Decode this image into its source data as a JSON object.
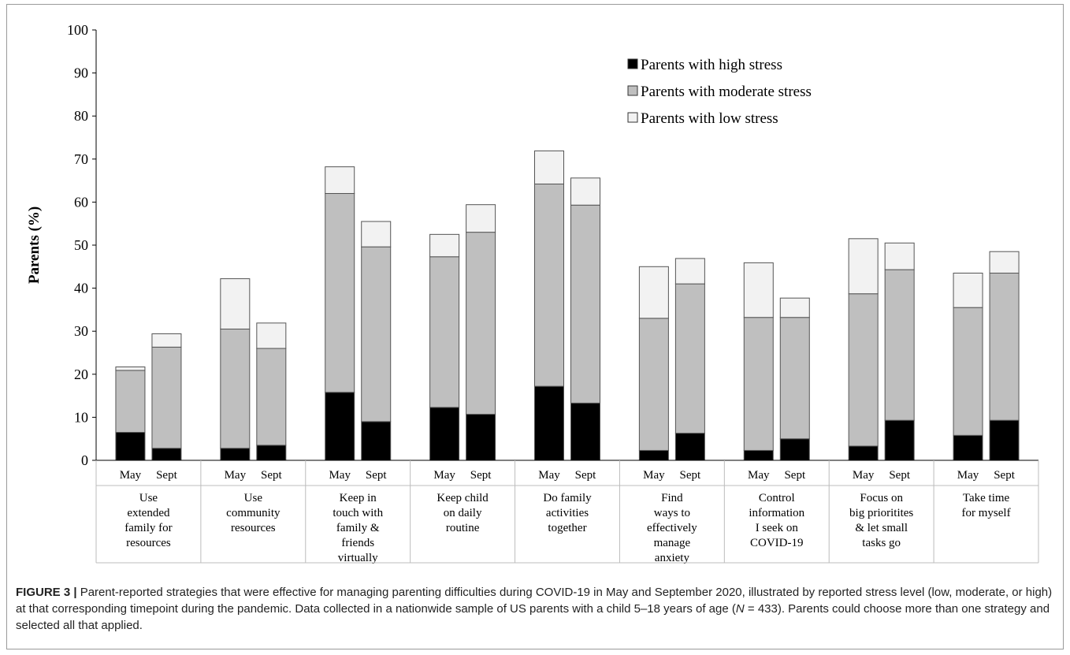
{
  "chart_data": {
    "type": "bar",
    "stacked": true,
    "title": "",
    "xlabel": "",
    "ylabel": "Parents (%)",
    "ylim": [
      0,
      100
    ],
    "yticks": [
      "0",
      "10",
      "20",
      "30",
      "40",
      "50",
      "60",
      "70",
      "80",
      "90",
      "100"
    ],
    "grid": false,
    "legend_position": "top-right",
    "groups": [
      {
        "label_lines": [
          "Use",
          "extended",
          "family for",
          "resources"
        ]
      },
      {
        "label_lines": [
          "Use",
          "community",
          "resources"
        ]
      },
      {
        "label_lines": [
          "Keep in",
          "touch with",
          "family &",
          "friends",
          "virtually"
        ]
      },
      {
        "label_lines": [
          "Keep child",
          "on daily",
          "routine"
        ]
      },
      {
        "label_lines": [
          "Do family",
          "activities",
          "together"
        ]
      },
      {
        "label_lines": [
          "Find",
          "ways to",
          "effectively",
          "manage",
          "anxiety"
        ]
      },
      {
        "label_lines": [
          "Control",
          "information",
          "I seek on",
          "COVID-19"
        ]
      },
      {
        "label_lines": [
          "Focus on",
          "big prioritites",
          "& let small",
          "tasks go"
        ]
      },
      {
        "label_lines": [
          "Take time",
          "for myself"
        ]
      }
    ],
    "timepoints": [
      "May",
      "Sept"
    ],
    "series": [
      {
        "name": "Parents with high stress",
        "color": "#000000",
        "values": [
          6.5,
          2.8,
          2.8,
          3.5,
          15.8,
          9.0,
          12.3,
          10.7,
          17.2,
          13.3,
          2.3,
          6.3,
          2.3,
          5.0,
          3.3,
          9.3,
          5.8,
          9.3
        ]
      },
      {
        "name": "Parents with moderate stress",
        "color": "#bfbfbf",
        "values": [
          14.4,
          23.5,
          27.7,
          22.5,
          46.2,
          40.6,
          35.0,
          42.3,
          47.0,
          46.0,
          30.7,
          34.7,
          30.9,
          28.2,
          35.4,
          35.0,
          29.7,
          34.2
        ]
      },
      {
        "name": "Parents with low stress",
        "color": "#f2f2f2",
        "values": [
          0.8,
          3.1,
          11.7,
          5.9,
          6.2,
          5.9,
          5.2,
          6.4,
          7.7,
          6.3,
          12.0,
          5.9,
          12.7,
          4.5,
          12.8,
          6.2,
          8.0,
          5.0
        ]
      }
    ]
  },
  "caption": {
    "figure_label": "FIGURE 3 |",
    "text_before_n": " Parent-reported strategies that were effective for managing parenting difficulties during COVID-19 in May and September 2020, illustrated by reported stress level (low, moderate, or high) at that corresponding timepoint during the pandemic. Data collected in a nationwide sample of US parents with a child 5–18 years of age (",
    "n_symbol": "N",
    "text_after_n": " = 433). Parents could choose more than one strategy and selected all that applied."
  }
}
